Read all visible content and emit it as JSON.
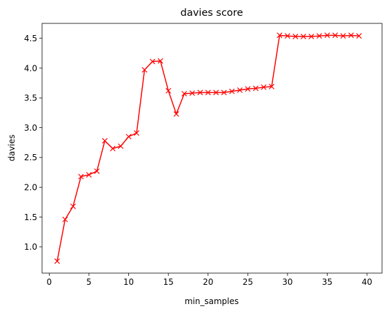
{
  "chart_data": {
    "type": "line",
    "title": "davies score",
    "xlabel": "min_samples",
    "ylabel": "davies",
    "xlim": [
      -0.9,
      41.9
    ],
    "ylim": [
      0.56,
      4.75
    ],
    "xticks": [
      0,
      5,
      10,
      15,
      20,
      25,
      30,
      35,
      40
    ],
    "yticks": [
      1.0,
      1.5,
      2.0,
      2.5,
      3.0,
      3.5,
      4.0,
      4.5
    ],
    "grid": false,
    "marker": "x",
    "color": "#ff0000",
    "x": [
      1,
      2,
      3,
      4,
      5,
      6,
      7,
      8,
      9,
      10,
      11,
      12,
      13,
      14,
      15,
      16,
      17,
      18,
      19,
      20,
      21,
      22,
      23,
      24,
      25,
      26,
      27,
      28,
      29,
      30,
      31,
      32,
      33,
      34,
      35,
      36,
      37,
      38,
      39
    ],
    "y": [
      0.76,
      1.46,
      1.68,
      2.18,
      2.21,
      2.27,
      2.78,
      2.65,
      2.69,
      2.85,
      2.91,
      3.97,
      4.11,
      4.12,
      3.62,
      3.23,
      3.57,
      3.58,
      3.59,
      3.59,
      3.59,
      3.59,
      3.61,
      3.63,
      3.65,
      3.66,
      3.68,
      3.69,
      4.55,
      4.54,
      4.53,
      4.53,
      4.53,
      4.54,
      4.55,
      4.55,
      4.54,
      4.55,
      4.54
    ]
  }
}
